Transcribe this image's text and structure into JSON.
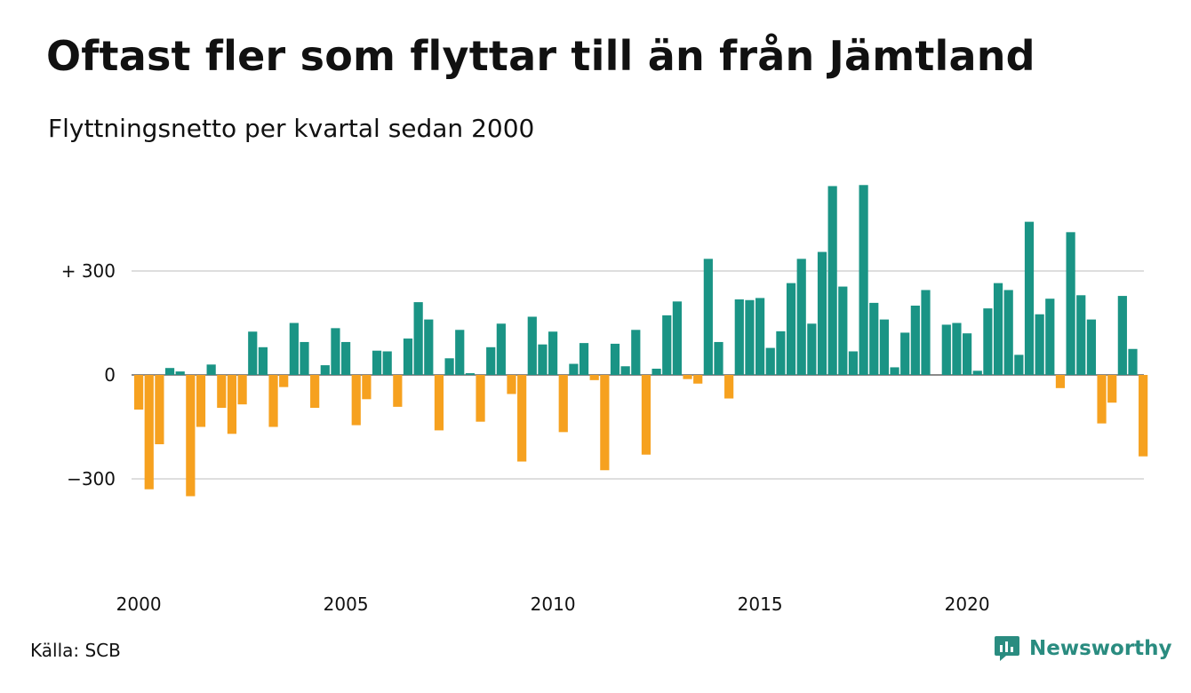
{
  "title": "Oftast fler som flyttar till än från Jämtland",
  "subtitle": "Flyttningsnetto per kvartal sedan 2000",
  "source": "Källa: SCB",
  "brand": {
    "name": "Newsworthy",
    "color": "#2a8c80",
    "icon": "newsworthy-logo-icon"
  },
  "colors": {
    "positive": "#1a9485",
    "negative": "#f6a11f",
    "grid": "#dedede"
  },
  "chart_data": {
    "type": "bar",
    "ylim": [
      -600,
      600
    ],
    "yticks": [
      300,
      0,
      -300
    ],
    "ytick_labels": [
      "+ 300",
      "0",
      "−300"
    ],
    "xticks": [
      2000,
      2005,
      2010,
      2015,
      2020
    ],
    "xtick_labels": [
      "2000",
      "2005",
      "2010",
      "2015",
      "2020"
    ],
    "grid": true,
    "legend": "none",
    "x_start_year": 2000,
    "values": [
      -100,
      -330,
      -200,
      20,
      10,
      -350,
      -150,
      30,
      -95,
      -170,
      -85,
      125,
      80,
      -150,
      -35,
      150,
      95,
      -95,
      28,
      135,
      95,
      -145,
      -70,
      70,
      68,
      -92,
      105,
      210,
      160,
      -160,
      48,
      130,
      5,
      -135,
      80,
      148,
      -55,
      -250,
      168,
      88,
      125,
      -165,
      32,
      92,
      -15,
      -275,
      90,
      25,
      130,
      -230,
      18,
      172,
      212,
      -12,
      -25,
      335,
      95,
      -68,
      218,
      216,
      222,
      78,
      126,
      265,
      335,
      148,
      355,
      545,
      255,
      68,
      548,
      208,
      160,
      22,
      122,
      200,
      245,
      0,
      145,
      150,
      120,
      12,
      192,
      265,
      245,
      58,
      442,
      175,
      220,
      -38,
      412,
      230,
      160,
      -140,
      -80,
      228,
      75,
      -235
    ]
  }
}
